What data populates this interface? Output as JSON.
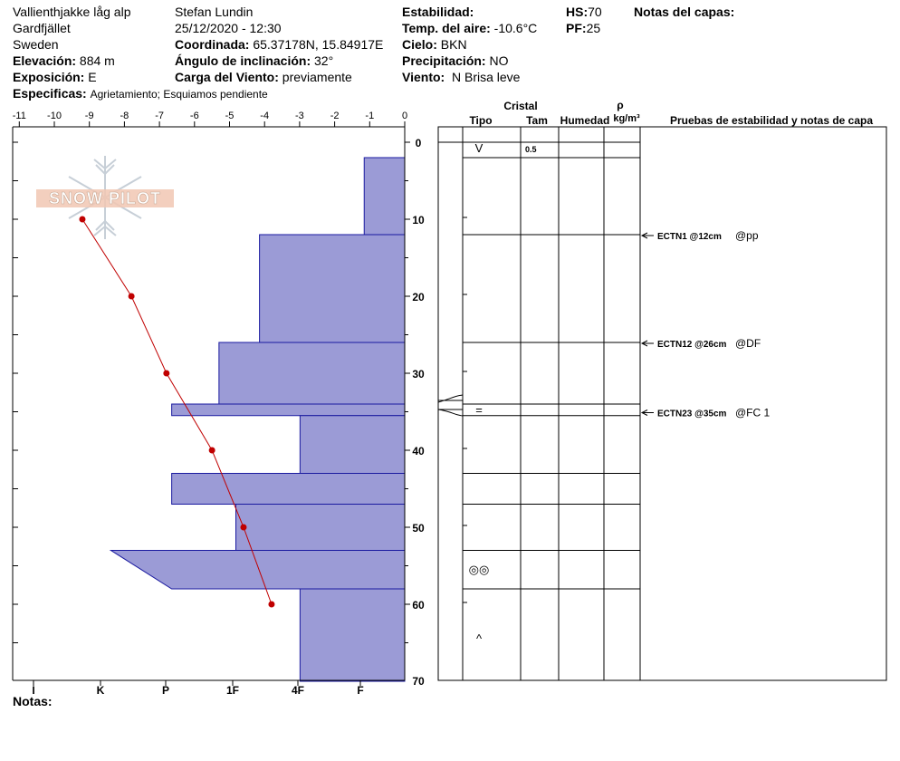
{
  "header": {
    "site": "Vallienthjakke låg alp",
    "area": "Gardfjället",
    "country": "Sweden",
    "elevation_label": "Elevación:",
    "elevation": "884 m",
    "aspect_label": "Exposición:",
    "aspect": "E",
    "specifics_label": "Especificas:",
    "specifics": "Agrietamiento;  Esquiamos pendiente",
    "observer": "Stefan Lundin",
    "datetime": "25/12/2020 - 12:30",
    "coord_label": "Coordinada:",
    "coordinates": "65.37178N, 15.84917E",
    "slope_label": "Ángulo de inclinación:",
    "slope": "32°",
    "wind_load_label": "Carga del Viento:",
    "wind_load": "previamente",
    "stability_label": "Estabilidad:",
    "air_temp_label": "Temp. del aire:",
    "air_temp": "-10.6°C",
    "sky_label": "Cielo:",
    "sky": "BKN",
    "precip_label": "Precipitación:",
    "precip": "NO",
    "wind_label": "Viento:",
    "wind": "N Brisa leve",
    "hs_label": "HS:",
    "hs": "70",
    "pf_label": "PF:",
    "pf": "25",
    "layer_notes_label": "Notas del capas:"
  },
  "logo": {
    "text": "SNOW PILOT"
  },
  "notes_label": "Notas:",
  "colors": {
    "hardness_fill": "#9b9bd6",
    "hardness_stroke": "#1a1aa0",
    "temp_line": "#c00000"
  },
  "chart_data": {
    "type": "snow-profile",
    "temp_axis": {
      "ticks": [
        "-11",
        "-10",
        "-9",
        "-8",
        "-7",
        "-6",
        "-5",
        "-4",
        "-3",
        "-2",
        "-1",
        "0"
      ],
      "range": [
        -11,
        0
      ]
    },
    "hardness_axis": {
      "ticks": [
        "I",
        "K",
        "P",
        "1F",
        "4F",
        "F"
      ]
    },
    "depth_axis": {
      "ticks": [
        "0",
        "10",
        "20",
        "30",
        "40",
        "50",
        "60",
        "70"
      ],
      "range": [
        0,
        70
      ]
    },
    "temperature_profile": [
      {
        "depth": 10,
        "temp": -9.2
      },
      {
        "depth": 20,
        "temp": -7.8
      },
      {
        "depth": 30,
        "temp": -6.8
      },
      {
        "depth": 40,
        "temp": -5.5
      },
      {
        "depth": 50,
        "temp": -4.6
      },
      {
        "depth": 60,
        "temp": -3.8
      }
    ],
    "hardness_layers": [
      {
        "top": 2,
        "bottom": 12,
        "hardness": 1.2
      },
      {
        "top": 12,
        "bottom": 26,
        "hardness": 4.3
      },
      {
        "top": 26,
        "bottom": 34,
        "hardness": 5.5
      },
      {
        "top": 34,
        "bottom": 35.5,
        "hardness": 6.9
      },
      {
        "top": 35.5,
        "bottom": 43,
        "hardness": 3.1
      },
      {
        "top": 43,
        "bottom": 47,
        "hardness": 6.9
      },
      {
        "top": 47,
        "bottom": 53,
        "hardness": 5.0
      },
      {
        "top": 53,
        "bottom": 58,
        "hardness_top": 8.7,
        "hardness_bottom": 6.9
      },
      {
        "top": 58,
        "bottom": 70,
        "hardness": 3.1
      }
    ],
    "layer_boundaries": [
      2,
      12,
      26,
      34,
      35.5,
      43,
      47,
      53,
      58
    ],
    "crystals": [
      {
        "depth": 0.8,
        "symbol": "V",
        "size": "0.5"
      },
      {
        "depth": 34.8,
        "symbol": "="
      },
      {
        "depth": 55.5,
        "symbol": "◎◎"
      },
      {
        "depth": 64.5,
        "symbol": "^"
      }
    ],
    "columns": {
      "cristal": "Cristal",
      "tipo": "Tipo",
      "tam": "Tam",
      "humedad": "Humedad",
      "rho": "ρ",
      "density_unit": "kg/m³",
      "tests": "Pruebas de estabilidad y notas de capa"
    },
    "tests": [
      {
        "depth": 12,
        "label": "ECTN1 @12cm",
        "note": "@pp"
      },
      {
        "depth": 26,
        "label": "ECTN12 @26cm",
        "note": "@DF"
      },
      {
        "depth": 35,
        "label": "ECTN23 @35cm",
        "note": "@FC 1"
      }
    ]
  }
}
